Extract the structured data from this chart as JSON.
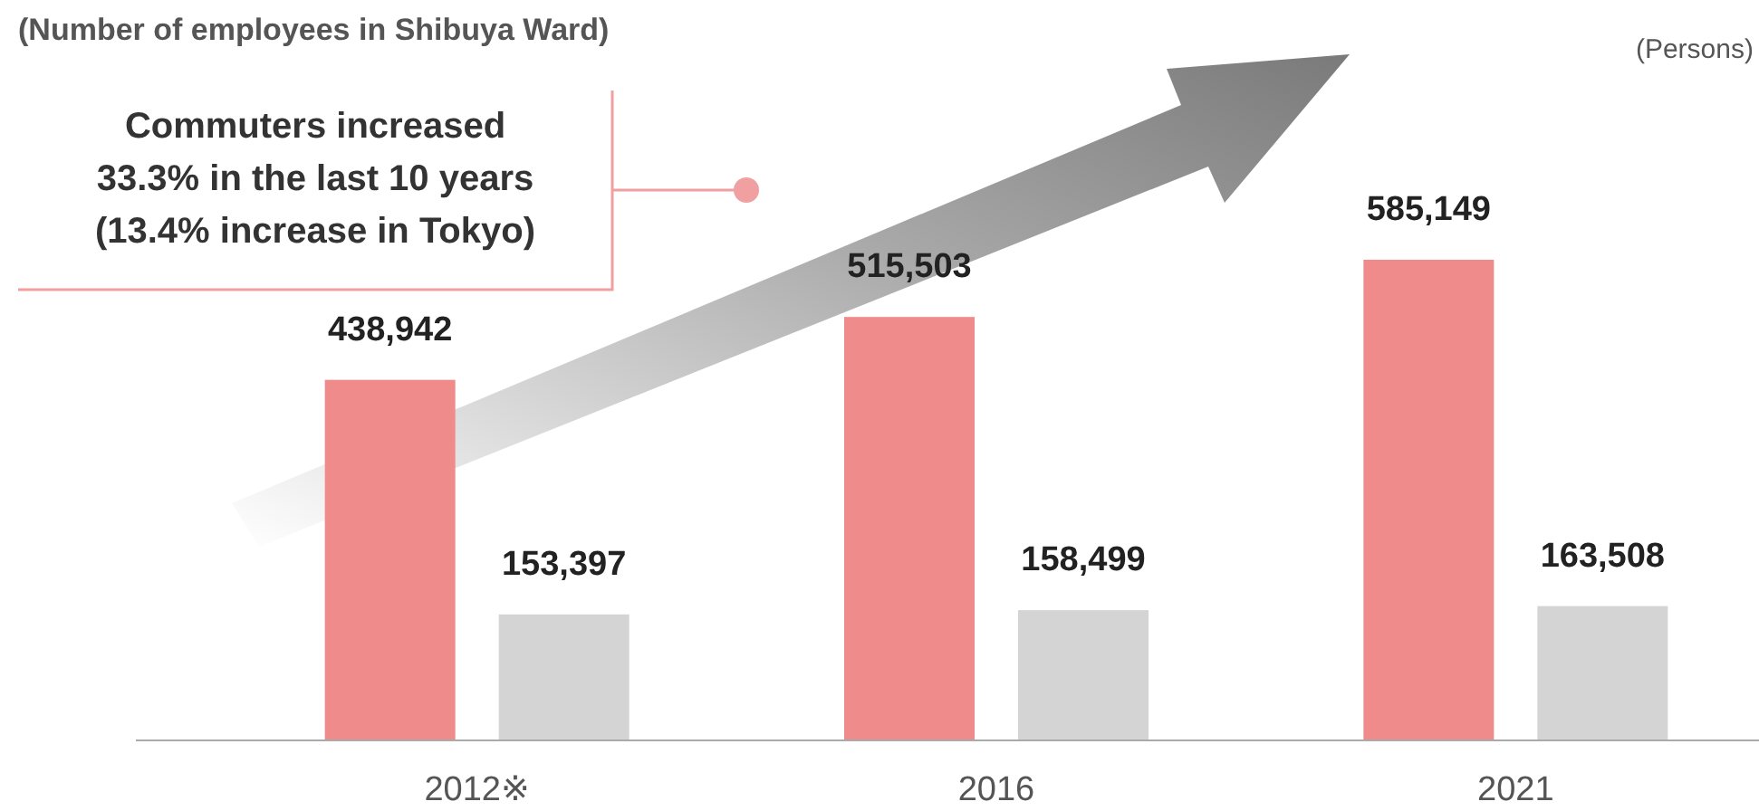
{
  "chart_data": {
    "type": "bar",
    "title": "(Number of employees in Shibuya Ward)",
    "categories": [
      "2012※",
      "2016",
      "2021"
    ],
    "series": [
      {
        "color": "#ef8b8b",
        "values": [
          438942,
          515503,
          585149
        ],
        "value_labels": [
          "438,942",
          "515,503",
          "585,149"
        ]
      },
      {
        "color": "#d4d4d4",
        "values": [
          153397,
          158499,
          163508
        ],
        "value_labels": [
          "153,397",
          "158,499",
          "163,508"
        ]
      }
    ],
    "tick_labels": "x",
    "annotations": [
      "(Persons)",
      "Commuters increased",
      "33.3% in the last 10 years",
      "(13.4% increase in Tokyo)"
    ]
  }
}
